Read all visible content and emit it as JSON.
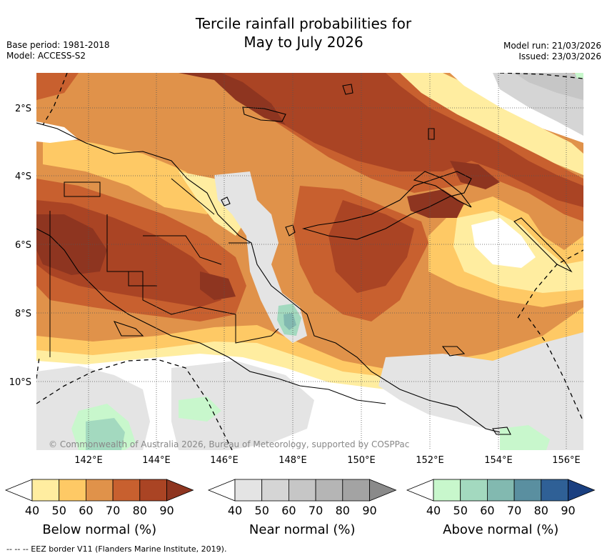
{
  "header": {
    "title_line1": "Tercile rainfall probabilities for",
    "title_line2": "May to July 2026",
    "base_period": "Base period: 1981-2018",
    "model": "Model: ACCESS-S2",
    "model_run": "Model run: 21/03/2026",
    "issued": "Issued: 23/03/2026"
  },
  "map": {
    "lat_labels": [
      "2°S",
      "4°S",
      "6°S",
      "8°S",
      "10°S"
    ],
    "lon_labels": [
      "142°E",
      "144°E",
      "146°E",
      "148°E",
      "150°E",
      "152°E",
      "154°E",
      "156°E"
    ],
    "copyright": "© Commonwealth of Australia 2026, Bureau of Meteorology, supported by COSPPac"
  },
  "legends": [
    {
      "label": "Below normal (%)",
      "ticks": [
        "40",
        "50",
        "60",
        "70",
        "80",
        "90"
      ],
      "colors": [
        "#ffffff",
        "#ffeda0",
        "#fec965",
        "#e0924a",
        "#c8602f",
        "#aa4424",
        "#8e3520"
      ]
    },
    {
      "label": "Near normal (%)",
      "ticks": [
        "40",
        "50",
        "60",
        "70",
        "80",
        "90"
      ],
      "colors": [
        "#ffffff",
        "#e4e4e4",
        "#d5d5d5",
        "#c6c6c6",
        "#b5b5b5",
        "#a3a3a3",
        "#8a8a8a"
      ]
    },
    {
      "label": "Above normal (%)",
      "ticks": [
        "40",
        "50",
        "60",
        "70",
        "80",
        "90"
      ],
      "colors": [
        "#ffffff",
        "#c8f7cc",
        "#a3d9bf",
        "#82b9b0",
        "#5a8fa0",
        "#2f6096",
        "#1a3f80"
      ]
    }
  ],
  "footer": {
    "eez_note": "--  --  -- EEZ border V11 (Flanders Marine Institute, 2019)."
  }
}
